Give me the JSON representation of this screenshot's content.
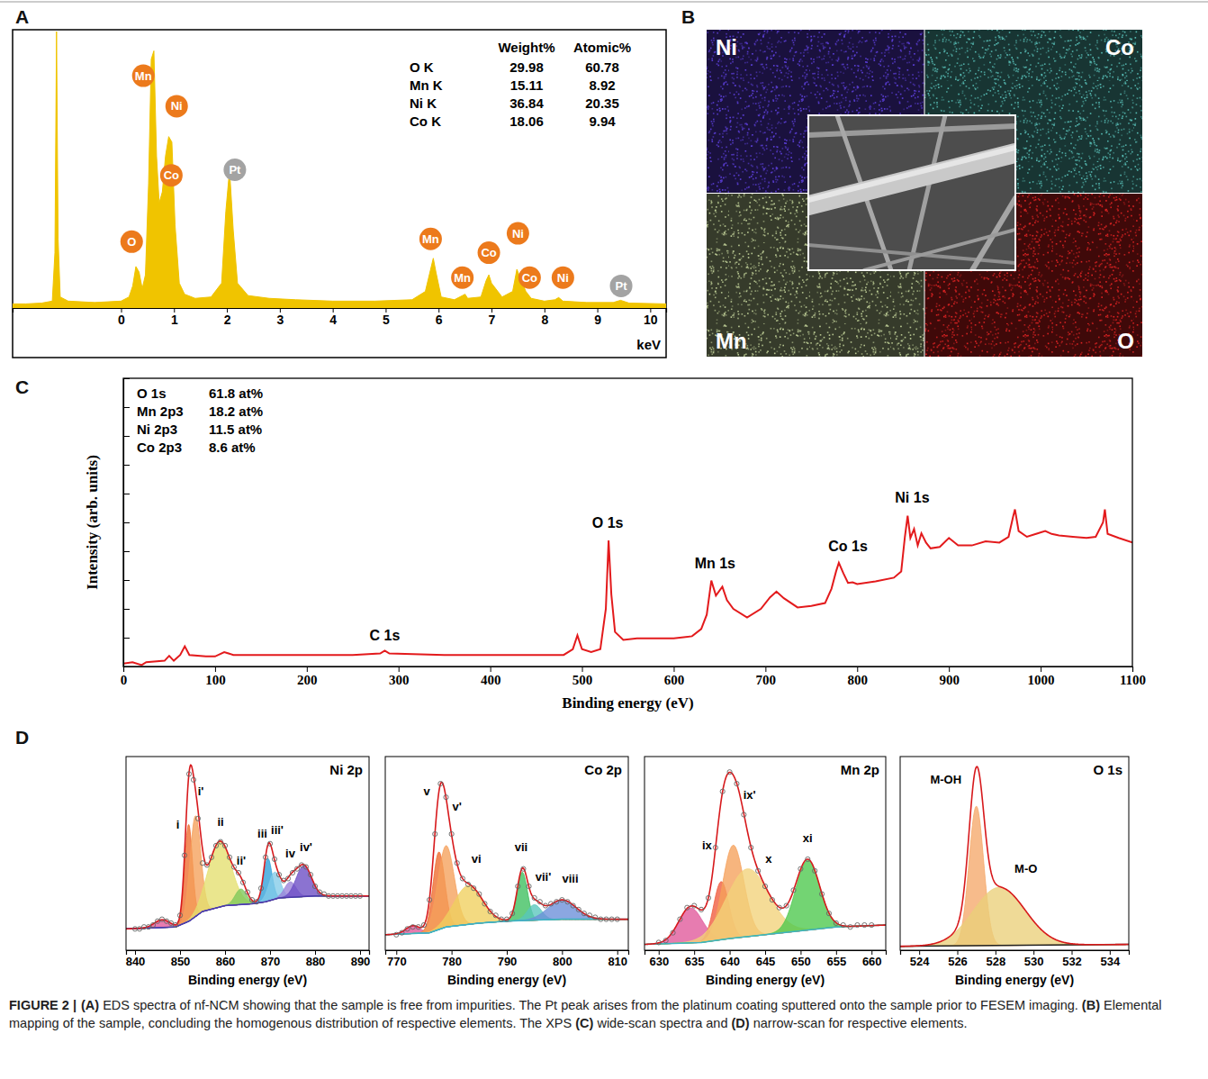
{
  "chart_data": [
    {
      "panel": "A",
      "type": "area",
      "color": "#f0c400",
      "x": [
        -2.05,
        -1.8,
        -1.5,
        -1.3,
        -1.25,
        -1.22,
        -1.19,
        -1.15,
        -1.0,
        -0.5,
        0,
        0.15,
        0.22,
        0.28,
        0.34,
        0.4,
        0.46,
        0.52,
        0.57,
        0.62,
        0.67,
        0.72,
        0.78,
        0.84,
        0.9,
        0.96,
        1.02,
        1.1,
        1.2,
        1.4,
        1.7,
        1.9,
        1.98,
        2.05,
        2.12,
        2.2,
        2.4,
        2.8,
        3.3,
        4.0,
        4.8,
        5.5,
        5.75,
        5.85,
        5.9,
        5.95,
        6.05,
        6.3,
        6.45,
        6.5,
        6.55,
        6.8,
        6.9,
        6.95,
        7.0,
        7.2,
        7.4,
        7.48,
        7.56,
        7.65,
        7.75,
        8.0,
        8.2,
        8.27,
        8.35,
        8.8,
        9.3,
        9.44,
        9.6,
        10.3
      ],
      "values": [
        1.5,
        1.5,
        1.8,
        2.5,
        20,
        100,
        25,
        4,
        2.5,
        2,
        2.5,
        4,
        8,
        15,
        13,
        7,
        12,
        45,
        90,
        93,
        55,
        38,
        42,
        55,
        62,
        60,
        30,
        9,
        5,
        3.5,
        4,
        9,
        35,
        50,
        28,
        9,
        4.5,
        3.5,
        3,
        2.5,
        2.5,
        3,
        6,
        14,
        18,
        13,
        4,
        3,
        4.5,
        5,
        3.5,
        4,
        10,
        12,
        9,
        4,
        6,
        14,
        10,
        6,
        3.5,
        2.5,
        3,
        3.8,
        2.5,
        2,
        2,
        2.8,
        1.8,
        1.5
      ],
      "xlim": [
        -2.05,
        10.3
      ],
      "xticks": [
        0,
        1,
        2,
        3,
        4,
        5,
        6,
        7,
        8,
        9,
        10
      ],
      "ylim": [
        0,
        100
      ],
      "tick_labels": "x",
      "x_label": "keV",
      "annotations": [
        {
          "text": "Mn",
          "x": 0.42,
          "y": 84,
          "color": "#ec7a1c"
        },
        {
          "text": "Ni",
          "x": 1.05,
          "y": 73,
          "color": "#ec7a1c"
        },
        {
          "text": "Co",
          "x": 0.95,
          "y": 48,
          "color": "#ec7a1c"
        },
        {
          "text": "O",
          "x": 0.2,
          "y": 24,
          "color": "#ec7a1c"
        },
        {
          "text": "Pt",
          "x": 2.15,
          "y": 50,
          "color": "#a3a3a3"
        },
        {
          "text": "Mn",
          "x": 5.85,
          "y": 25,
          "color": "#ec7a1c"
        },
        {
          "text": "Mn",
          "x": 6.45,
          "y": 11,
          "color": "#ec7a1c"
        },
        {
          "text": "Co",
          "x": 6.95,
          "y": 20,
          "color": "#ec7a1c"
        },
        {
          "text": "Ni",
          "x": 7.5,
          "y": 27,
          "color": "#ec7a1c"
        },
        {
          "text": "Co",
          "x": 7.72,
          "y": 11,
          "color": "#ec7a1c"
        },
        {
          "text": "Ni",
          "x": 8.35,
          "y": 11,
          "color": "#ec7a1c"
        },
        {
          "text": "Pt",
          "x": 9.45,
          "y": 8,
          "color": "#a3a3a3"
        }
      ],
      "table": {
        "columns": [
          "Weight%",
          "Atomic%"
        ],
        "rows": [
          {
            "label": "O K",
            "values": [
              29.98,
              60.78
            ]
          },
          {
            "label": "Mn K",
            "values": [
              15.11,
              8.92
            ]
          },
          {
            "label": "Ni K",
            "values": [
              36.84,
              20.35
            ]
          },
          {
            "label": "Co K",
            "values": [
              18.06,
              9.94
            ]
          }
        ]
      }
    },
    {
      "panel": "B",
      "type": "image",
      "maps": [
        {
          "name": "Ni",
          "color": "#5d3fe0"
        },
        {
          "name": "Co",
          "color": "#57c0b8"
        },
        {
          "name": "Mn",
          "color": "#c4d49a"
        },
        {
          "name": "O",
          "color": "#e52222"
        }
      ]
    },
    {
      "panel": "C",
      "type": "line",
      "color": "#e31a1c",
      "x": [
        0,
        10,
        20,
        25,
        45,
        50,
        55,
        62,
        67,
        72,
        90,
        100,
        110,
        120,
        150,
        200,
        250,
        280,
        285,
        290,
        350,
        400,
        450,
        480,
        490,
        495,
        500,
        510,
        520,
        526,
        529,
        532,
        536,
        545,
        560,
        600,
        620,
        630,
        636,
        641,
        646,
        653,
        658,
        665,
        680,
        695,
        705,
        712,
        720,
        735,
        750,
        765,
        772,
        777,
        780,
        785,
        790,
        795,
        800,
        820,
        840,
        848,
        852,
        855,
        858,
        862,
        866,
        870,
        875,
        880,
        890,
        900,
        910,
        925,
        940,
        955,
        965,
        970,
        972,
        976,
        985,
        995,
        1005,
        1012,
        1020,
        1035,
        1050,
        1060,
        1068,
        1070,
        1073,
        1085,
        1100
      ],
      "values": [
        1,
        1.5,
        0.5,
        1.5,
        2,
        3.7,
        2,
        4,
        7,
        4,
        3.5,
        3.5,
        5,
        4,
        4,
        4,
        4,
        4.5,
        5.5,
        4.5,
        4,
        4,
        4,
        4,
        6,
        10.8,
        6,
        5,
        6,
        20,
        43.7,
        25,
        12,
        9.2,
        9.8,
        9.8,
        10.5,
        13,
        18,
        29.8,
        24.6,
        27.7,
        23,
        20,
        17,
        20,
        24,
        26,
        23.7,
        20.5,
        21,
        22,
        27,
        33,
        36,
        32.3,
        29,
        29.2,
        28.6,
        29.5,
        30.8,
        33,
        45,
        52.3,
        44.6,
        47.7,
        42,
        46.2,
        43,
        41,
        41.5,
        44.6,
        42,
        42,
        43.4,
        43,
        45,
        52,
        54.5,
        47,
        45,
        46,
        47,
        46,
        45.5,
        45,
        44.6,
        45,
        50,
        54.5,
        46,
        44.6,
        43
      ],
      "xlim": [
        0,
        1100
      ],
      "xticks": [
        0,
        100,
        200,
        300,
        400,
        500,
        600,
        700,
        800,
        900,
        1000,
        1100
      ],
      "ylim": [
        0,
        100
      ],
      "yticks": [
        0,
        10,
        20,
        30,
        40,
        50,
        60,
        70,
        80,
        90,
        100
      ],
      "tick_labels": "x",
      "x_label": "Binding energy (eV)",
      "y_label": "Intensity (arb. units)",
      "composition": [
        {
          "label": "O 1s",
          "text": "61.8 at%"
        },
        {
          "label": "Mn 2p3",
          "text": "18.2 at%"
        },
        {
          "label": "Ni 2p3",
          "text": "11.5 at%"
        },
        {
          "label": "Co 2p3",
          "text": "8.6 at%"
        }
      ],
      "annotations": [
        {
          "text": "C 1s",
          "x": 285,
          "y": 9
        },
        {
          "text": "O 1s",
          "x": 528,
          "y": 48
        },
        {
          "text": "Mn 1s",
          "x": 645,
          "y": 34
        },
        {
          "text": "Co 1s",
          "x": 790,
          "y": 40
        },
        {
          "text": "Ni 1s",
          "x": 860,
          "y": 57
        }
      ]
    },
    {
      "panel": "D",
      "type": "peak_fit",
      "title": "Ni 2p",
      "color": "#d7191c",
      "x": [
        840,
        841,
        842,
        843,
        844,
        845,
        846,
        847,
        848,
        849,
        850,
        851,
        852,
        853,
        854,
        855,
        856,
        857,
        858,
        859,
        860,
        861,
        862,
        863,
        864,
        865,
        866,
        867,
        868,
        869,
        870,
        871,
        872,
        873,
        874,
        875,
        876,
        877,
        878,
        879,
        880,
        881,
        882,
        883,
        884,
        885,
        886,
        887,
        888,
        889,
        890
      ],
      "values": [
        11,
        11,
        12,
        12,
        13,
        15,
        16,
        15,
        14,
        13,
        18,
        49,
        91,
        88,
        68,
        45,
        44,
        48,
        54,
        56,
        54,
        48,
        43,
        40,
        35,
        30,
        26,
        25,
        32,
        48,
        55,
        47,
        39,
        36,
        37,
        40,
        42,
        44,
        43,
        39,
        33,
        30,
        29,
        28,
        28,
        28,
        28,
        28,
        28,
        28,
        28
      ],
      "background": {
        "color": "#4b3aa8",
        "x": [
          838,
          849,
          852,
          855,
          860,
          866,
          869,
          872,
          880,
          892
        ],
        "values": [
          11,
          12,
          15,
          20,
          23,
          24,
          25,
          27,
          28,
          28
        ]
      },
      "components": [
        {
          "color": "#e0579a",
          "center": 846,
          "height": 4,
          "fwhm": 4
        },
        {
          "name": "i",
          "color": "#ee6a2c",
          "center": 851.9,
          "height": 50,
          "fwhm": 2,
          "label_x": 849.5,
          "label_y": 63
        },
        {
          "name": "i'",
          "color": "#f5a05a",
          "center": 853.4,
          "height": 52,
          "fwhm": 2.8,
          "label_x": 854.6,
          "label_y": 80
        },
        {
          "name": "ii",
          "color": "#e4df6e",
          "center": 858.8,
          "height": 34,
          "fwhm": 6,
          "label_x": 859,
          "label_y": 64
        },
        {
          "name": "ii'",
          "color": "#7cc85a",
          "center": 863.5,
          "height": 8,
          "fwhm": 3,
          "label_x": 863.6,
          "label_y": 44
        },
        {
          "name": "iii",
          "color": "#2f9fd8",
          "center": 869.5,
          "height": 22,
          "fwhm": 2.2,
          "label_x": 868.3,
          "label_y": 58
        },
        {
          "name": "iii'",
          "color": "#83cbe8",
          "center": 871,
          "height": 14,
          "fwhm": 3,
          "label_x": 871.6,
          "label_y": 60
        },
        {
          "name": "iv",
          "color": "#9a82d8",
          "center": 874.5,
          "height": 8,
          "fwhm": 3,
          "label_x": 874.5,
          "label_y": 48
        },
        {
          "name": "iv'",
          "color": "#6a4cc4",
          "center": 877.5,
          "height": 16,
          "fwhm": 4,
          "label_x": 878,
          "label_y": 51
        }
      ],
      "xlim": [
        838,
        892
      ],
      "xticks": [
        840,
        850,
        860,
        870,
        880,
        890
      ],
      "ylim": [
        0,
        100
      ],
      "tick_labels": "x",
      "x_label": "Binding energy (eV)"
    },
    {
      "type": "peak_fit",
      "title": "Co 2p",
      "color": "#d7191c",
      "x": [
        770,
        771,
        772,
        773,
        774,
        775,
        776,
        777,
        778,
        779,
        780,
        781,
        782,
        783,
        784,
        785,
        786,
        787,
        788,
        789,
        790,
        791,
        792,
        793,
        794,
        795,
        796,
        797,
        798,
        799,
        800,
        801,
        802,
        803,
        804,
        805,
        806,
        807,
        808,
        809,
        810
      ],
      "values": [
        8,
        9,
        11,
        12,
        12,
        13,
        26,
        60,
        86,
        79,
        60,
        45,
        37,
        34,
        32,
        29,
        24,
        20,
        18,
        16,
        16,
        19,
        33,
        42,
        33,
        27,
        25,
        23,
        24,
        25,
        26,
        25,
        23,
        21,
        19,
        18,
        17,
        16,
        16,
        16,
        16
      ],
      "background": {
        "color": "#3cb4c4",
        "x": [
          768,
          776,
          779,
          785,
          790,
          800,
          812
        ],
        "values": [
          8,
          9,
          12,
          14,
          15,
          16,
          16
        ]
      },
      "components": [
        {
          "color": "#e0579a",
          "center": 773,
          "height": 4,
          "fwhm": 3
        },
        {
          "name": "v",
          "color": "#ee6a2c",
          "center": 777.7,
          "height": 40,
          "fwhm": 2.5,
          "label_x": 775.5,
          "label_y": 80
        },
        {
          "name": "v'",
          "color": "#f5a05a",
          "center": 779,
          "height": 42,
          "fwhm": 3.5,
          "label_x": 781,
          "label_y": 72
        },
        {
          "name": "vi",
          "color": "#efd05e",
          "center": 783,
          "height": 20,
          "fwhm": 6,
          "label_x": 784.5,
          "label_y": 45
        },
        {
          "name": "vii",
          "color": "#3cbf5e",
          "center": 792.8,
          "height": 25,
          "fwhm": 2.2,
          "label_x": 792.6,
          "label_y": 51
        },
        {
          "name": "vii'",
          "color": "#58c6bd",
          "center": 795,
          "height": 8,
          "fwhm": 3,
          "label_x": 796.6,
          "label_y": 36
        },
        {
          "name": "viii",
          "color": "#6a8ed8",
          "center": 800,
          "height": 10,
          "fwhm": 6,
          "label_x": 801.5,
          "label_y": 35
        }
      ],
      "xlim": [
        768,
        812
      ],
      "xticks": [
        770,
        780,
        790,
        800,
        810
      ],
      "ylim": [
        0,
        100
      ],
      "tick_labels": "x",
      "x_label": "Binding energy (eV)"
    },
    {
      "type": "peak_fit",
      "title": "Mn 2p",
      "color": "#d7191c",
      "x": [
        630,
        631,
        632,
        633,
        634,
        635,
        636,
        637,
        638,
        639,
        640,
        641,
        642,
        643,
        644,
        645,
        646,
        647,
        648,
        649,
        650,
        651,
        652,
        653,
        654,
        655,
        656,
        657,
        658,
        659,
        660
      ],
      "values": [
        4,
        5,
        9,
        16,
        22,
        23,
        21,
        27,
        53,
        82,
        92,
        86,
        70,
        53,
        41,
        33,
        26,
        22,
        23,
        31,
        42,
        47,
        41,
        29,
        19,
        14,
        13,
        12,
        13,
        13,
        13
      ],
      "background": {
        "color": "#3cb4c4",
        "x": [
          628,
          636,
          640,
          645,
          650,
          655,
          662
        ],
        "values": [
          3,
          4,
          6,
          8,
          10,
          12,
          13
        ]
      },
      "components": [
        {
          "color": "#e0579a",
          "center": 634.5,
          "height": 18,
          "fwhm": 4
        },
        {
          "name": "ix",
          "color": "#ef5a3c",
          "center": 638.8,
          "height": 30,
          "fwhm": 2.5,
          "label_x": 636.8,
          "label_y": 52
        },
        {
          "name": "ix'",
          "color": "#f5a05a",
          "center": 640.5,
          "height": 48,
          "fwhm": 3.5,
          "label_x": 642.8,
          "label_y": 78
        },
        {
          "name": "x",
          "color": "#f2d27a",
          "center": 642.5,
          "height": 35,
          "fwhm": 7,
          "label_x": 645.5,
          "label_y": 45
        },
        {
          "name": "xi",
          "color": "#4cc84c",
          "center": 651,
          "height": 36,
          "fwhm": 4,
          "label_x": 651,
          "label_y": 56
        }
      ],
      "xlim": [
        628,
        662
      ],
      "xticks": [
        630,
        635,
        640,
        645,
        650,
        655,
        660
      ],
      "ylim": [
        0,
        100
      ],
      "tick_labels": "x",
      "x_label": "Binding energy (eV)"
    },
    {
      "type": "peak_fit",
      "title": "O 1s",
      "color": "#d7191c",
      "background": {
        "color": "#222222",
        "x": [
          523,
          535
        ],
        "values": [
          2,
          3
        ]
      },
      "components": [
        {
          "name": "M-OH",
          "color": "#f5a86a",
          "center": 527,
          "height": 72,
          "fwhm": 0.9,
          "label_x": 525.4,
          "label_y": 86
        },
        {
          "name": "M-O",
          "color": "#ead07a",
          "center": 528.2,
          "height": 30,
          "fwhm": 3.2,
          "label_x": 529.6,
          "label_y": 40
        }
      ],
      "xlim": [
        523,
        535
      ],
      "xticks": [
        524,
        526,
        528,
        530,
        532,
        534
      ],
      "ylim": [
        0,
        100
      ],
      "tick_labels": "x",
      "x_label": "Binding energy (eV)"
    }
  ],
  "caption": {
    "label": "FIGURE 2 |",
    "parts": [
      {
        "letter": "(A)",
        "text": " EDS spectra of nf-NCM showing that the sample is free from impurities. The Pt peak arises from the platinum coating sputtered onto the sample prior to FESEM imaging. "
      },
      {
        "letter": "(B)",
        "text": " Elemental mapping of the sample, concluding the homogenous distribution of respective elements. The XPS "
      },
      {
        "letter": "(C)",
        "text": " wide-scan spectra and "
      },
      {
        "letter": "(D)",
        "text": " narrow-scan for respective elements."
      }
    ]
  }
}
